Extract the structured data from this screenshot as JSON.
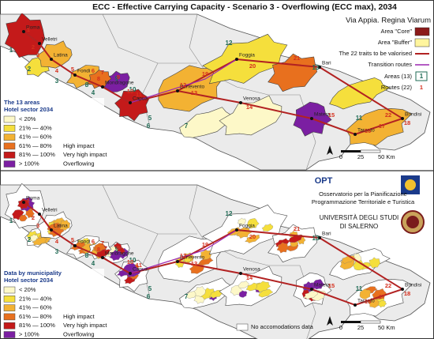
{
  "top_map": {
    "title": "ECC - Effective Carrying Capacity  - Scenario 3 - Overflowing (ECC max), 2034",
    "subtitle": "Via Appia. Regina Viarum",
    "legend": {
      "core": "Area \"Core\"",
      "buffer": "Area \"Buffer\"",
      "traits": "The 22 traits to be valorised",
      "transition": "Transition routes",
      "areas": "Areas (13)",
      "areas_sample": "1",
      "routes": "Routes (22)",
      "routes_sample": "1"
    },
    "classes_title": [
      "The 13 areas",
      "Hotel sector 2034"
    ],
    "classes": [
      {
        "range": "< 20%",
        "label": ""
      },
      {
        "range": "21% — 40%",
        "label": ""
      },
      {
        "range": "41% — 60%",
        "label": ""
      },
      {
        "range": "61% — 80%",
        "label": "High impact"
      },
      {
        "range": "81% — 100%",
        "label": "Very high impact"
      },
      {
        "range": "> 100%",
        "label": "Overflowing"
      }
    ],
    "places": [
      "Roma",
      "Velletri",
      "Latina",
      "Fondi",
      "Mondragone",
      "Capua",
      "Benevento",
      "Foggia",
      "Bari",
      "Venosa",
      "Matera",
      "Taranto",
      "Brindisi"
    ],
    "area_numbers": [
      "1",
      "2",
      "3",
      "4",
      "5",
      "6",
      "7",
      "8",
      "9",
      "10",
      "11",
      "12",
      "13"
    ],
    "route_numbers": [
      "1",
      "2",
      "3",
      "4",
      "5",
      "6",
      "7",
      "8",
      "9",
      "10",
      "11",
      "12",
      "13",
      "14",
      "15",
      "16",
      "17",
      "18",
      "19",
      "20",
      "21",
      "22"
    ],
    "scale": [
      "0",
      "25",
      "50 Km"
    ]
  },
  "bottom_map": {
    "institute": [
      "OPT",
      "Osservatorio per la Pianificazione",
      "Programmazione Territoriale e Turistica"
    ],
    "university": [
      "UNIVERSITÀ DEGLI STUDI",
      "DI SALERNO"
    ],
    "classes_title": [
      "Data by municipality",
      "Hotel sector 2034"
    ],
    "classes": [
      {
        "range": "< 20%",
        "label": ""
      },
      {
        "range": "21% — 40%",
        "label": ""
      },
      {
        "range": "41% — 60%",
        "label": ""
      },
      {
        "range": "61% — 80%",
        "label": "High impact"
      },
      {
        "range": "81% — 100%",
        "label": "Very high impact"
      },
      {
        "range": "> 100%",
        "label": "Overflowing"
      }
    ],
    "no_data": "No accomodations data",
    "places": [
      "Roma",
      "Velletri",
      "Latina",
      "Fondi",
      "Mondragone",
      "Capua",
      "Benevento",
      "Foggia",
      "Bari",
      "Venosa",
      "Matera",
      "Taranto",
      "Brindisi"
    ],
    "area_numbers": [
      "1",
      "2",
      "3",
      "4",
      "5",
      "6",
      "7",
      "8",
      "9",
      "10",
      "11",
      "12",
      "13"
    ],
    "route_numbers": [
      "1",
      "2",
      "3",
      "4",
      "5",
      "6",
      "7",
      "8",
      "9",
      "10",
      "11",
      "12",
      "13",
      "14",
      "15",
      "16",
      "17",
      "18",
      "19",
      "20",
      "21",
      "22"
    ],
    "scale": [
      "0",
      "25",
      "50 Km"
    ]
  }
}
